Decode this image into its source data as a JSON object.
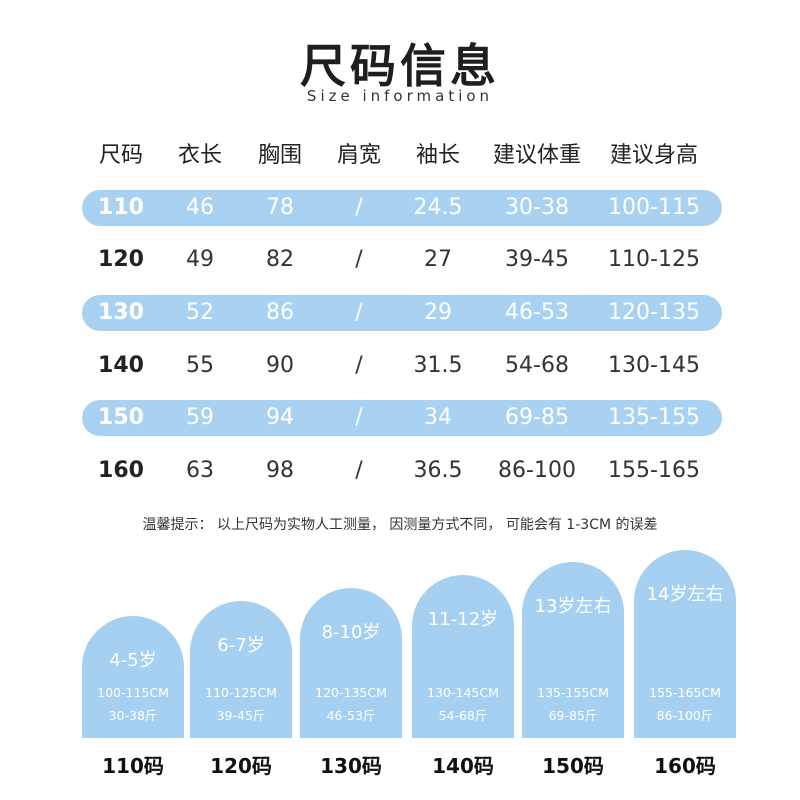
{
  "title": "尺码信息",
  "subtitle": "Size information",
  "headers": [
    "尺码",
    "衣长",
    "胸围",
    "肩宽",
    "袖长",
    "建议体重",
    "建议身高"
  ],
  "rows": [
    [
      "110",
      "46",
      "78",
      "/",
      "24.5",
      "30-38",
      "100-115"
    ],
    [
      "120",
      "49",
      "82",
      "/",
      "27",
      "39-45",
      "110-125"
    ],
    [
      "130",
      "52",
      "86",
      "/",
      "29",
      "46-53",
      "120-135"
    ],
    [
      "140",
      "55",
      "90",
      "/",
      "31.5",
      "54-68",
      "130-145"
    ],
    [
      "150",
      "59",
      "94",
      "/",
      "34",
      "69-85",
      "135-155"
    ],
    [
      "160",
      "63",
      "98",
      "/",
      "36.5",
      "86-100",
      "155-165"
    ]
  ],
  "note": "温馨提示： 以上尺码为实物人工测量， 因测量方式不同， 可能会有 1-3CM 的误差",
  "cards": [
    {
      "age": "4-5岁",
      "height": "100-115CM",
      "weight": "30-38斤",
      "code": "110码"
    },
    {
      "age": "6-7岁",
      "height": "110-125CM",
      "weight": "39-45斤",
      "code": "120码"
    },
    {
      "age": "8-10岁",
      "height": "120-135CM",
      "weight": "46-53斤",
      "code": "130码"
    },
    {
      "age": "11-12岁",
      "height": "130-145CM",
      "weight": "54-68斤",
      "code": "140码"
    },
    {
      "age": "13岁左右",
      "height": "135-155CM",
      "weight": "69-85斤",
      "code": "150码"
    },
    {
      "age": "14岁左右",
      "height": "155-165CM",
      "weight": "86-100斤",
      "code": "160码"
    }
  ],
  "colors": {
    "row_highlight": "#a9d2f2",
    "card_fill": "#a6d0f1"
  }
}
